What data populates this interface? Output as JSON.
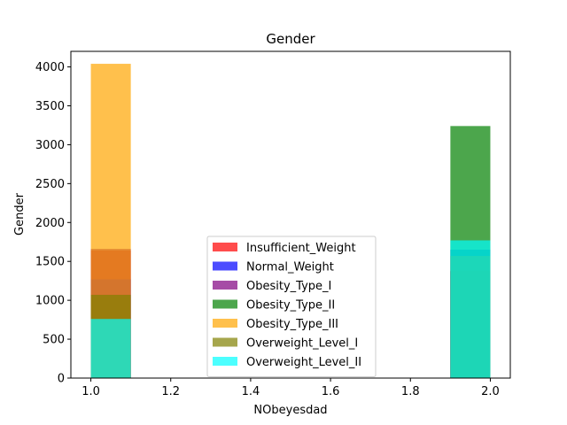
{
  "chart_data": {
    "type": "bar",
    "title": "Gender",
    "xlabel": "NObeyesdad",
    "ylabel": "Gender",
    "xlim": [
      0.95,
      2.05
    ],
    "ylim": [
      0,
      4200
    ],
    "x_ticks": [
      1.0,
      1.2,
      1.4,
      1.6,
      1.8,
      2.0
    ],
    "x_tick_labels": [
      "1.0",
      "1.2",
      "1.4",
      "1.6",
      "1.8",
      "2.0"
    ],
    "y_ticks": [
      0,
      500,
      1000,
      1500,
      2000,
      2500,
      3000,
      3500,
      4000
    ],
    "y_tick_labels": [
      "0",
      "500",
      "1000",
      "1500",
      "2000",
      "2500",
      "3000",
      "3500",
      "4000"
    ],
    "bar_width": 0.1,
    "opacity": 0.7,
    "legend_position": "lower center",
    "series": [
      {
        "name": "Insufficient_Weight",
        "color": "#ff0000",
        "bars": [
          {
            "x": 1.0,
            "value": 1640
          },
          {
            "x": 1.9,
            "value": 1370
          }
        ]
      },
      {
        "name": "Normal_Weight",
        "color": "#0000ff",
        "bars": [
          {
            "x": 1.0,
            "value": 1270
          },
          {
            "x": 1.9,
            "value": 1650
          }
        ]
      },
      {
        "name": "Obesity_Type_I",
        "color": "#800080",
        "bars": [
          {
            "x": 1.0,
            "value": 1660
          },
          {
            "x": 1.9,
            "value": 1380
          }
        ]
      },
      {
        "name": "Obesity_Type_II",
        "color": "#008000",
        "bars": [
          {
            "x": 1.0,
            "value": 10
          },
          {
            "x": 1.9,
            "value": 3240
          }
        ]
      },
      {
        "name": "Obesity_Type_III",
        "color": "#ffa500",
        "bars": [
          {
            "x": 1.0,
            "value": 4040
          },
          {
            "x": 1.9,
            "value": 5
          }
        ]
      },
      {
        "name": "Overweight_Level_I",
        "color": "#808000",
        "bars": [
          {
            "x": 1.0,
            "value": 1070
          },
          {
            "x": 1.9,
            "value": 1570
          }
        ]
      },
      {
        "name": "Overweight_Level_II",
        "color": "#00ffff",
        "bars": [
          {
            "x": 1.0,
            "value": 760
          },
          {
            "x": 1.9,
            "value": 1770
          }
        ]
      }
    ]
  }
}
